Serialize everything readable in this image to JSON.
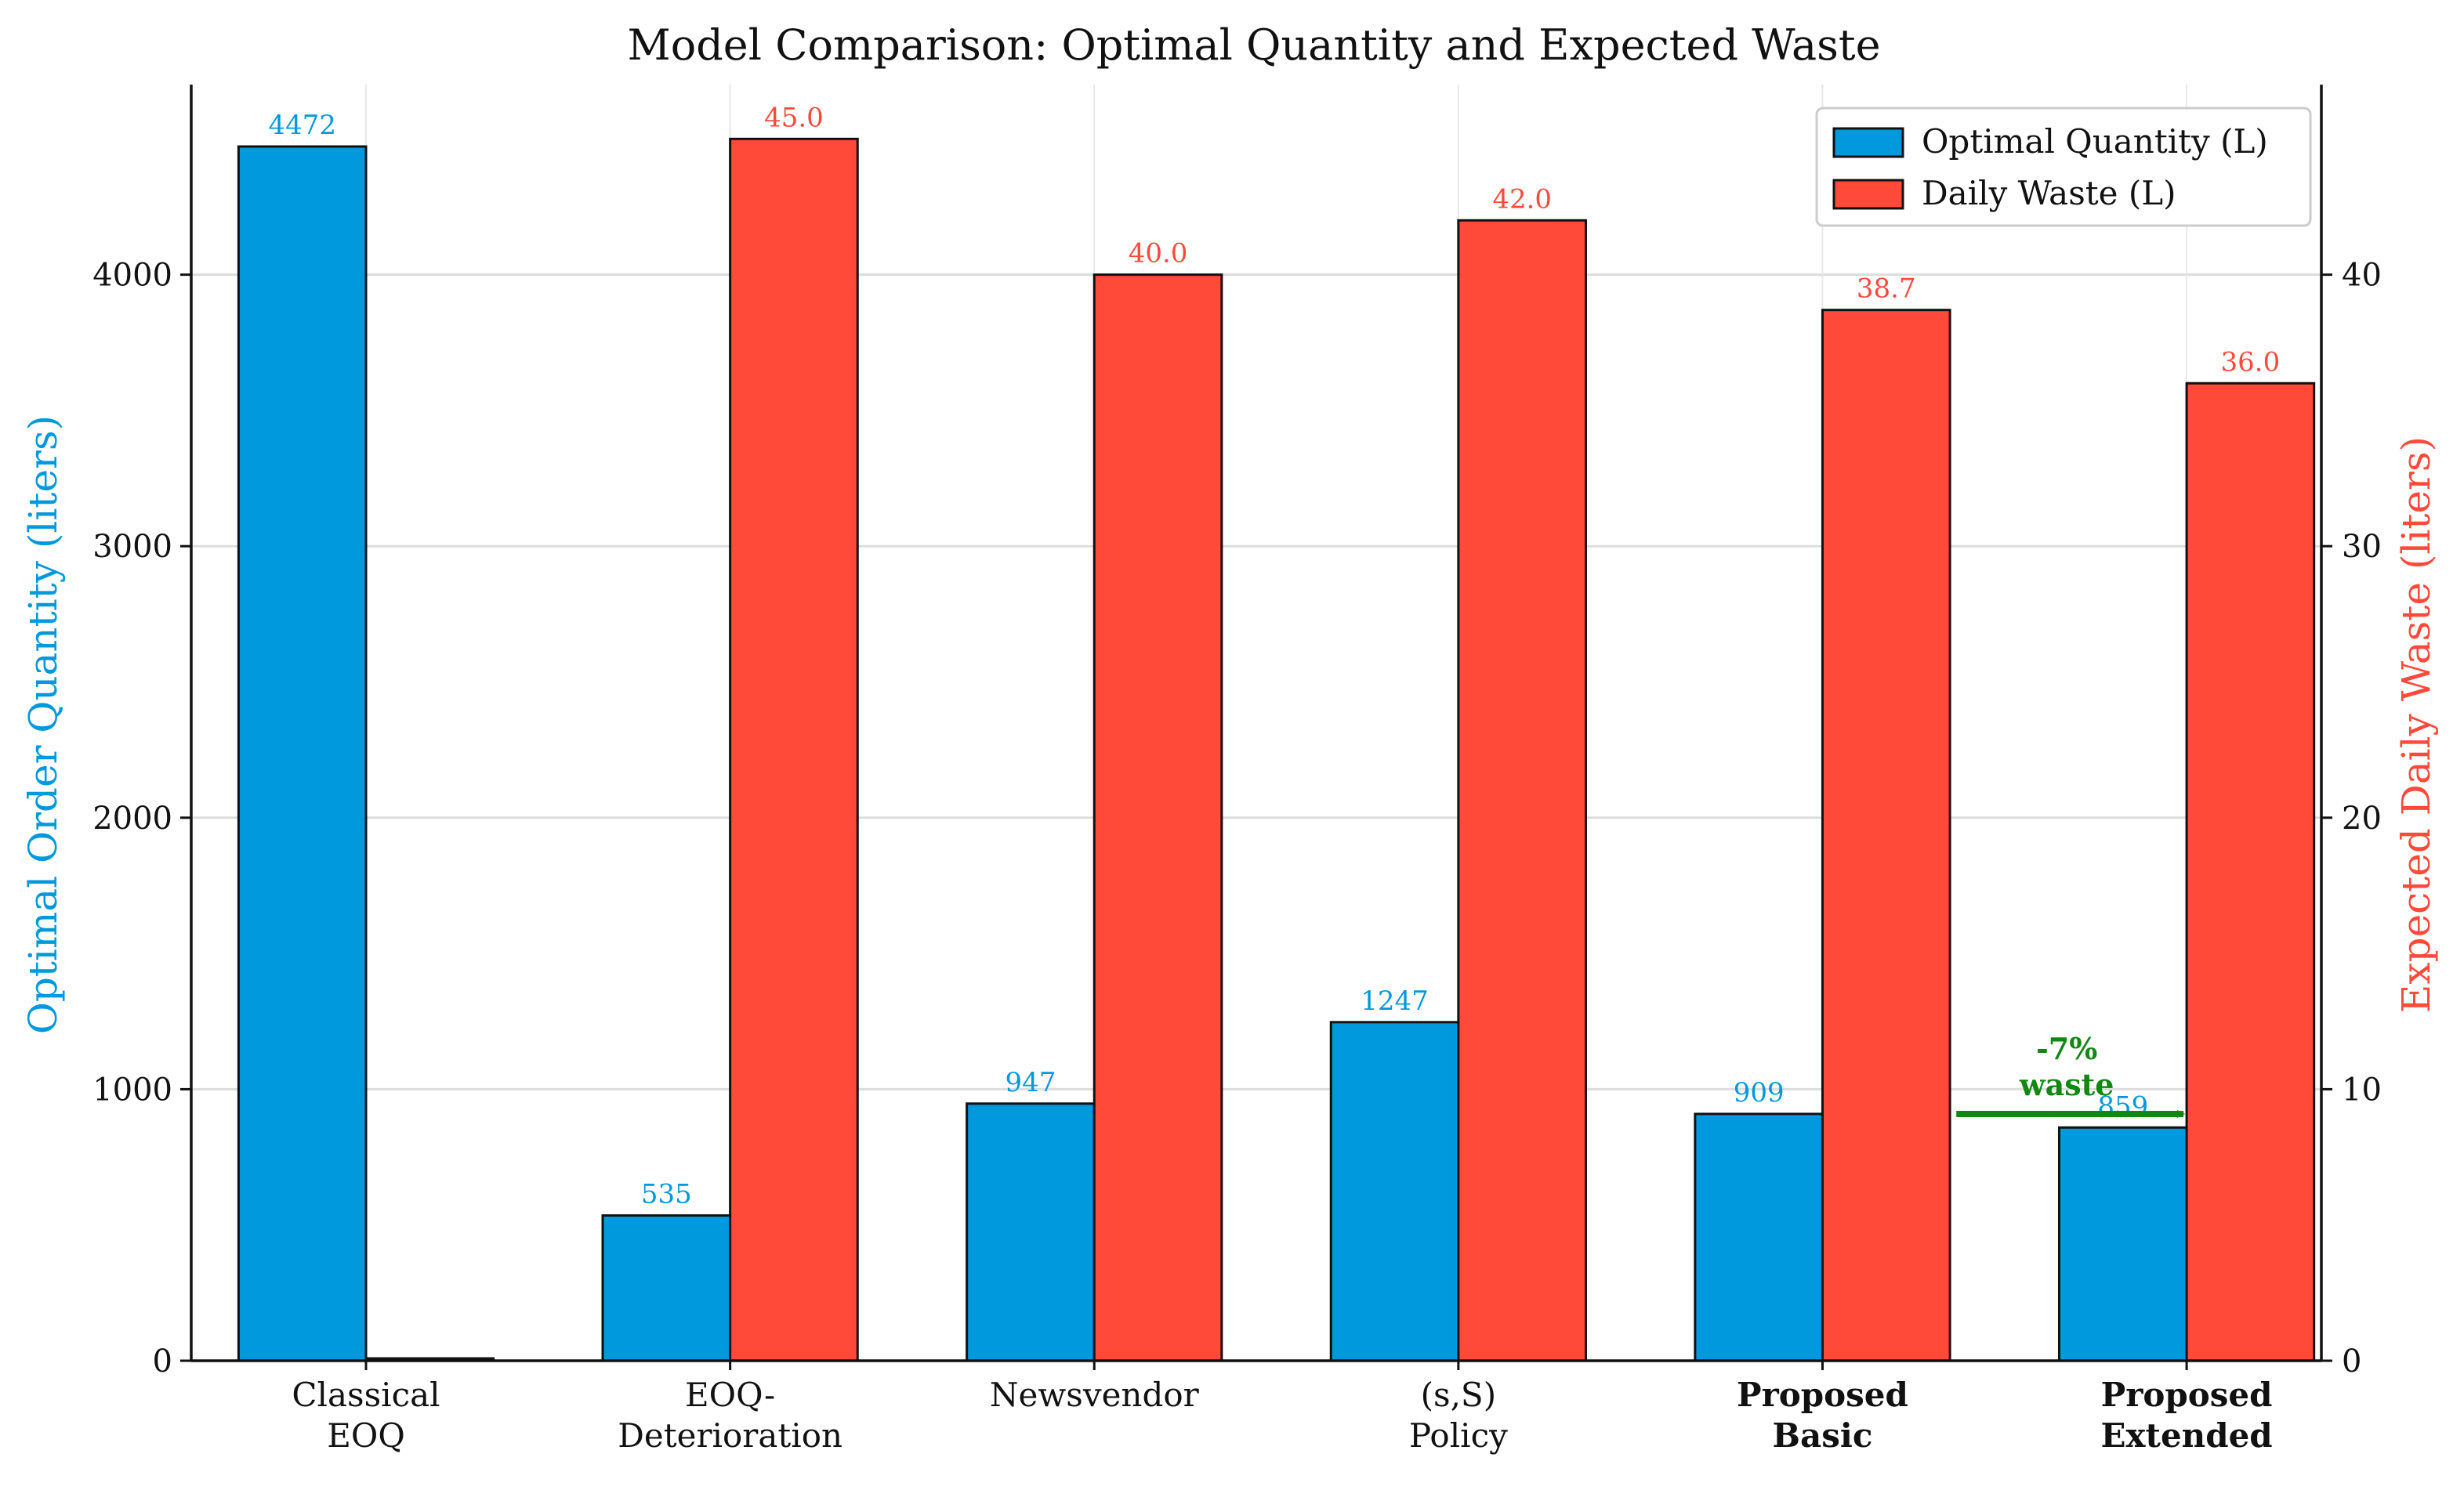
{
  "chart_data": {
    "type": "bar",
    "title": "Model Comparison: Optimal Quantity and Expected Waste",
    "categories": [
      [
        "Classical",
        "EOQ"
      ],
      [
        "EOQ-",
        "Deterioration"
      ],
      [
        "Newsvendor"
      ],
      [
        "(s,S)",
        "Policy"
      ],
      [
        "Proposed",
        "Basic"
      ],
      [
        "Proposed",
        "Extended"
      ]
    ],
    "category_bold": [
      false,
      false,
      false,
      false,
      true,
      true
    ],
    "series": [
      {
        "name": "Optimal Quantity (L)",
        "axis": "left",
        "color": "#0099dd",
        "values": [
          4472,
          535,
          947,
          1247,
          909,
          859
        ],
        "labels": [
          "4472",
          "535",
          "947",
          "1247",
          "909",
          "859"
        ]
      },
      {
        "name": "Daily Waste (L)",
        "axis": "right",
        "color": "#ff4a3a",
        "values": [
          0,
          45.0,
          40.0,
          42.0,
          38.7,
          36.0
        ],
        "labels": [
          "",
          "45.0",
          "40.0",
          "42.0",
          "38.7",
          "36.0"
        ]
      }
    ],
    "ylabel_left": "Optimal Order Quantity (liters)",
    "ylabel_right": "Expected Daily Waste (liters)",
    "ylim_left": [
      0,
      4700
    ],
    "ylim_right": [
      0,
      47
    ],
    "yticks_left": [
      0,
      1000,
      2000,
      3000,
      4000
    ],
    "yticks_right": [
      0,
      10,
      20,
      30,
      40
    ],
    "grid": true,
    "legend_position": "top-right",
    "annotation": {
      "lines": [
        "-7%",
        "waste"
      ],
      "color": "#118811",
      "from_category": 4,
      "to_category": 5,
      "arrow_y_left_axis": 909
    }
  }
}
